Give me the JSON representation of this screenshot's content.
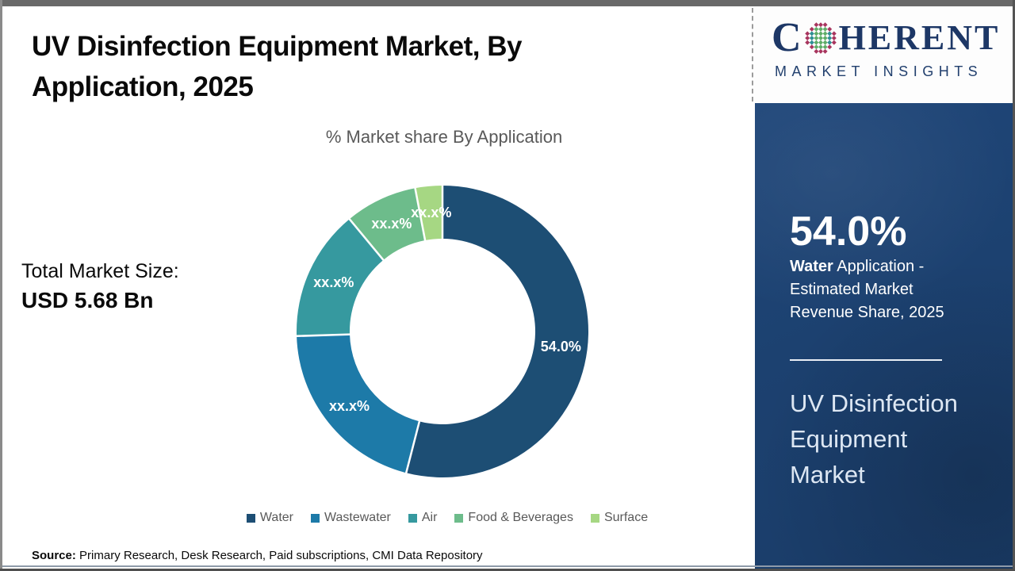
{
  "header": {
    "title_lines": [
      "UV Disinfection Equipment Market, By",
      "Application, 2025"
    ]
  },
  "market_size": {
    "label": "Total Market Size:",
    "value": "USD 5.68 Bn"
  },
  "chart_data": {
    "type": "pie",
    "subtype": "donut",
    "title": "% Market share By Application",
    "categories": [
      "Water",
      "Wastewater",
      "Air",
      "Food & Beverages",
      "Surface"
    ],
    "values": [
      54.0,
      20.5,
      14.5,
      8.0,
      3.0
    ],
    "value_labels": [
      "54.0%",
      "xx.x%",
      "xx.x%",
      "xx.x%",
      "xx.x%"
    ],
    "colors": [
      "#1d4e74",
      "#1d7aa8",
      "#36999f",
      "#6dbc8b",
      "#a6d783"
    ],
    "note_masked": "Only the Water slice value (54.0%) is shown; other slice values are masked as xx.x% in the image, angles estimated",
    "start_angle_deg": 0,
    "direction": "clockwise",
    "donut_hole_ratio": 0.636,
    "separator_color": "#ffffff",
    "legend_position": "bottom"
  },
  "source": {
    "label": "Source:",
    "text": " Primary Research, Desk Research, Paid subscriptions, CMI Data Repository"
  },
  "logo": {
    "word_start": "C",
    "word_end": "HERENT",
    "subtitle": "MARKET INSIGHTS",
    "text_color": "#1d3766",
    "globe_colors": {
      "outer": "#a8355e",
      "mid": "#2f8f94",
      "inner": "#5fae68"
    }
  },
  "sidebar": {
    "stat_value": "54.0%",
    "stat_desc_bold": "Water",
    "stat_desc_rest": " Application - Estimated Market Revenue Share, 2025",
    "panel_title": "UV Disinfection Equipment Market",
    "bg_color": "#1c4170"
  }
}
